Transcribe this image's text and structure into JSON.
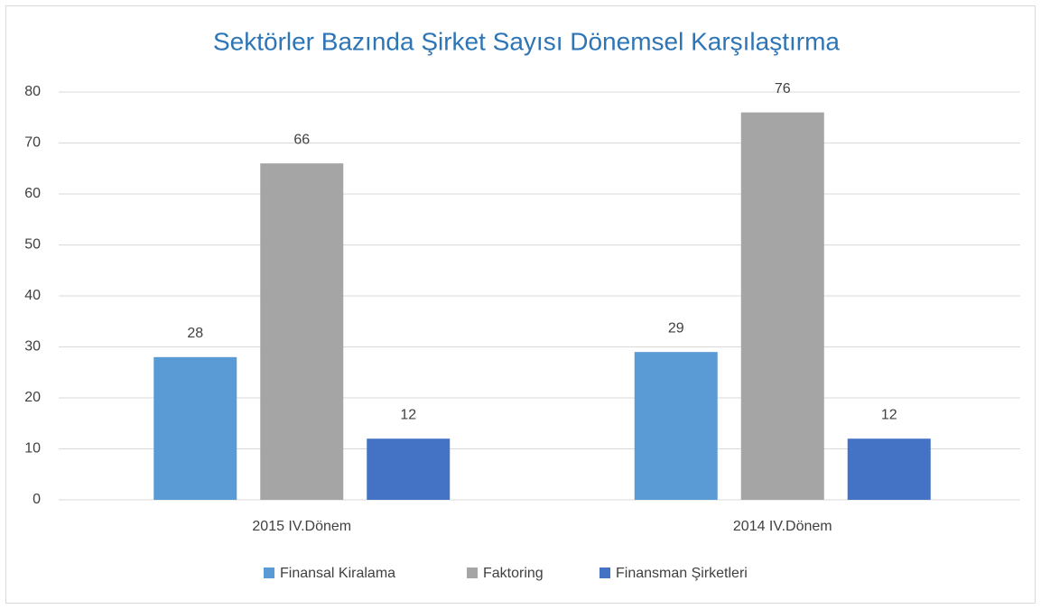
{
  "chart_data": {
    "type": "bar",
    "title": "Sektörler Bazında Şirket Sayısı Dönemsel Karşılaştırma",
    "categories": [
      "2015 IV.Dönem",
      "2014 IV.Dönem"
    ],
    "series": [
      {
        "name": "Finansal Kiralama",
        "color": "#5b9bd5",
        "values": [
          28,
          29
        ]
      },
      {
        "name": "Faktoring",
        "color": "#a5a5a5",
        "values": [
          66,
          76
        ]
      },
      {
        "name": "Finansman Şirketleri",
        "color": "#4472c4",
        "values": [
          12,
          12
        ]
      }
    ],
    "ylim": [
      0,
      80
    ],
    "yticks": [
      0,
      10,
      20,
      30,
      40,
      50,
      60,
      70,
      80
    ],
    "grid": true,
    "legend": "bottom"
  }
}
